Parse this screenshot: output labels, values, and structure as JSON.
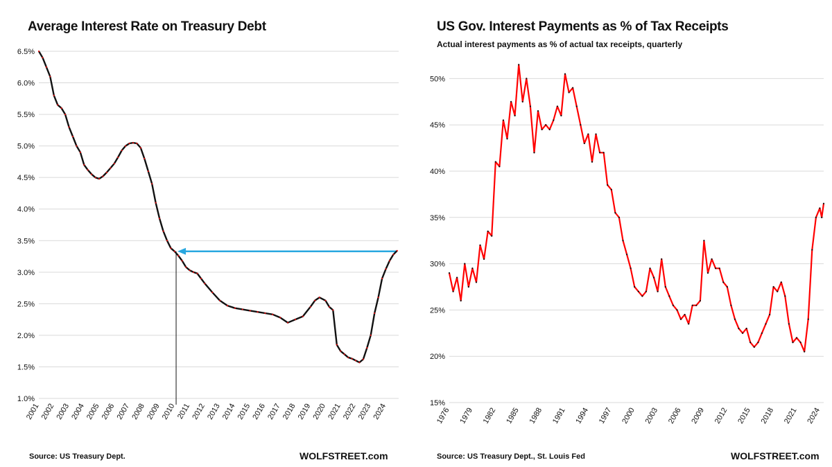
{
  "chart_data": [
    {
      "type": "line",
      "title": "Average Interest Rate on Treasury Debt",
      "source": "Source: US Treasury Dept.",
      "brand": "WOLFSTREET.com",
      "colors": {
        "line": "#111111",
        "marker": "#e01010",
        "arrow": "#29a8e0",
        "grid": "#d9d9d9",
        "guide": "#111111"
      },
      "ylim": [
        1.0,
        6.5
      ],
      "yticks": [
        "1.0%",
        "1.5%",
        "2.0%",
        "2.5%",
        "3.0%",
        "3.5%",
        "4.0%",
        "4.5%",
        "5.0%",
        "5.5%",
        "6.0%",
        "6.5%"
      ],
      "ytick_values": [
        1.0,
        1.5,
        2.0,
        2.5,
        3.0,
        3.5,
        4.0,
        4.5,
        5.0,
        5.5,
        6.0,
        6.5
      ],
      "xlim": [
        2001,
        2024.85
      ],
      "xticks": [
        "2001",
        "2002",
        "2003",
        "2004",
        "2005",
        "2006",
        "2007",
        "2008",
        "2009",
        "2010",
        "2011",
        "2012",
        "2013",
        "2014",
        "2015",
        "2016",
        "2017",
        "2018",
        "2019",
        "2020",
        "2021",
        "2022",
        "2023",
        "2024"
      ],
      "grid": true,
      "reference_value": 3.33,
      "reference_date": 2010.1,
      "series": [
        {
          "x": [
            2001.0,
            2001.25,
            2001.5,
            2001.75,
            2002.0,
            2002.25,
            2002.5,
            2002.75,
            2003.0,
            2003.25,
            2003.5,
            2003.75,
            2004.0,
            2004.25,
            2004.5,
            2004.75,
            2005.0,
            2005.25,
            2005.5,
            2005.75,
            2006.0,
            2006.25,
            2006.5,
            2006.75,
            2007.0,
            2007.25,
            2007.5,
            2007.75,
            2008.0,
            2008.25,
            2008.5,
            2008.75,
            2009.0,
            2009.25,
            2009.5,
            2009.75,
            2010.0,
            2010.25,
            2010.5,
            2010.75,
            2011.0,
            2011.25,
            2011.5,
            2011.75,
            2012.0,
            2012.5,
            2013.0,
            2013.5,
            2014.0,
            2014.5,
            2015.0,
            2015.5,
            2016.0,
            2016.5,
            2017.0,
            2017.5,
            2018.0,
            2018.5,
            2019.0,
            2019.3,
            2019.6,
            2020.0,
            2020.25,
            2020.5,
            2020.75,
            2021.0,
            2021.25,
            2021.5,
            2021.75,
            2022.0,
            2022.25,
            2022.5,
            2022.75,
            2023.0,
            2023.25,
            2023.5,
            2023.75,
            2024.0,
            2024.25,
            2024.5,
            2024.75
          ],
          "y": [
            6.5,
            6.4,
            6.25,
            6.1,
            5.8,
            5.65,
            5.6,
            5.5,
            5.3,
            5.15,
            5.0,
            4.9,
            4.7,
            4.62,
            4.55,
            4.5,
            4.48,
            4.52,
            4.58,
            4.65,
            4.72,
            4.82,
            4.93,
            5.0,
            5.04,
            5.05,
            5.04,
            4.97,
            4.8,
            4.6,
            4.4,
            4.1,
            3.85,
            3.65,
            3.5,
            3.38,
            3.33,
            3.26,
            3.18,
            3.08,
            3.03,
            3.0,
            2.98,
            2.9,
            2.82,
            2.68,
            2.55,
            2.47,
            2.43,
            2.41,
            2.39,
            2.37,
            2.35,
            2.33,
            2.28,
            2.2,
            2.25,
            2.3,
            2.45,
            2.55,
            2.6,
            2.55,
            2.45,
            2.4,
            1.85,
            1.75,
            1.7,
            1.65,
            1.63,
            1.6,
            1.57,
            1.62,
            1.8,
            2.0,
            2.35,
            2.6,
            2.9,
            3.05,
            3.18,
            3.28,
            3.34
          ]
        }
      ]
    },
    {
      "type": "line",
      "title": "US Gov. Interest Payments as % of Tax Receipts",
      "subtitle": "Actual interest payments as % of actual tax receipts, quarterly",
      "source": "Source: US Treasury Dept., St. Louis Fed",
      "brand": "WOLFSTREET.com",
      "colors": {
        "line": "#ff0000",
        "marker": "#111111",
        "grid": "#d9d9d9"
      },
      "ylim": [
        15,
        52.5
      ],
      "yticks": [
        "15%",
        "20%",
        "25%",
        "30%",
        "35%",
        "40%",
        "45%",
        "50%"
      ],
      "ytick_values": [
        15,
        20,
        25,
        30,
        35,
        40,
        45,
        50
      ],
      "xlim": [
        1976,
        2024.5
      ],
      "xticks": [
        "1976",
        "1979",
        "1982",
        "1985",
        "1988",
        "1991",
        "1994",
        "1997",
        "2000",
        "2003",
        "2006",
        "2009",
        "2012",
        "2015",
        "2018",
        "2021",
        "2024"
      ],
      "grid": true,
      "series": [
        {
          "x": [
            1976.0,
            1976.5,
            1977.0,
            1977.5,
            1978.0,
            1978.5,
            1979.0,
            1979.5,
            1980.0,
            1980.5,
            1981.0,
            1981.5,
            1982.0,
            1982.5,
            1983.0,
            1983.5,
            1984.0,
            1984.5,
            1985.0,
            1985.5,
            1986.0,
            1986.5,
            1987.0,
            1987.5,
            1988.0,
            1988.5,
            1989.0,
            1989.5,
            1990.0,
            1990.5,
            1991.0,
            1991.5,
            1992.0,
            1992.5,
            1993.0,
            1993.5,
            1994.0,
            1994.5,
            1995.0,
            1995.5,
            1996.0,
            1996.5,
            1997.0,
            1997.5,
            1998.0,
            1998.5,
            1999.0,
            1999.5,
            2000.0,
            2000.5,
            2001.0,
            2001.5,
            2002.0,
            2002.5,
            2003.0,
            2003.5,
            2004.0,
            2004.5,
            2005.0,
            2005.5,
            2006.0,
            2006.5,
            2007.0,
            2007.5,
            2008.0,
            2008.5,
            2009.0,
            2009.5,
            2010.0,
            2010.5,
            2011.0,
            2011.5,
            2012.0,
            2012.5,
            2013.0,
            2013.5,
            2014.0,
            2014.5,
            2015.0,
            2015.5,
            2016.0,
            2016.5,
            2017.0,
            2017.5,
            2018.0,
            2018.5,
            2019.0,
            2019.5,
            2020.0,
            2020.5,
            2021.0,
            2021.5,
            2022.0,
            2022.5,
            2023.0,
            2023.5,
            2024.0,
            2024.25,
            2024.5
          ],
          "y": [
            29.0,
            27.0,
            28.5,
            26.0,
            30.0,
            27.5,
            29.5,
            28.0,
            32.0,
            30.5,
            33.5,
            33.0,
            41.0,
            40.5,
            45.5,
            43.5,
            47.5,
            46.0,
            51.5,
            47.5,
            50.0,
            47.0,
            42.0,
            46.5,
            44.5,
            45.0,
            44.5,
            45.5,
            47.0,
            46.0,
            50.5,
            48.5,
            49.0,
            47.0,
            45.0,
            43.0,
            44.0,
            41.0,
            44.0,
            42.0,
            42.0,
            38.5,
            38.0,
            35.5,
            35.0,
            32.5,
            31.0,
            29.5,
            27.5,
            27.0,
            26.5,
            27.0,
            29.5,
            28.5,
            27.0,
            30.5,
            27.5,
            26.5,
            25.5,
            25.0,
            24.0,
            24.5,
            23.5,
            25.5,
            25.5,
            26.0,
            32.5,
            29.0,
            30.5,
            29.5,
            29.5,
            28.0,
            27.5,
            25.5,
            24.0,
            23.0,
            22.5,
            23.0,
            21.5,
            21.0,
            21.5,
            22.5,
            23.5,
            24.5,
            27.5,
            27.0,
            28.0,
            26.5,
            23.5,
            21.5,
            22.0,
            21.5,
            20.5,
            24.0,
            31.5,
            35.0,
            36.0,
            35.0,
            36.5
          ]
        }
      ]
    }
  ]
}
